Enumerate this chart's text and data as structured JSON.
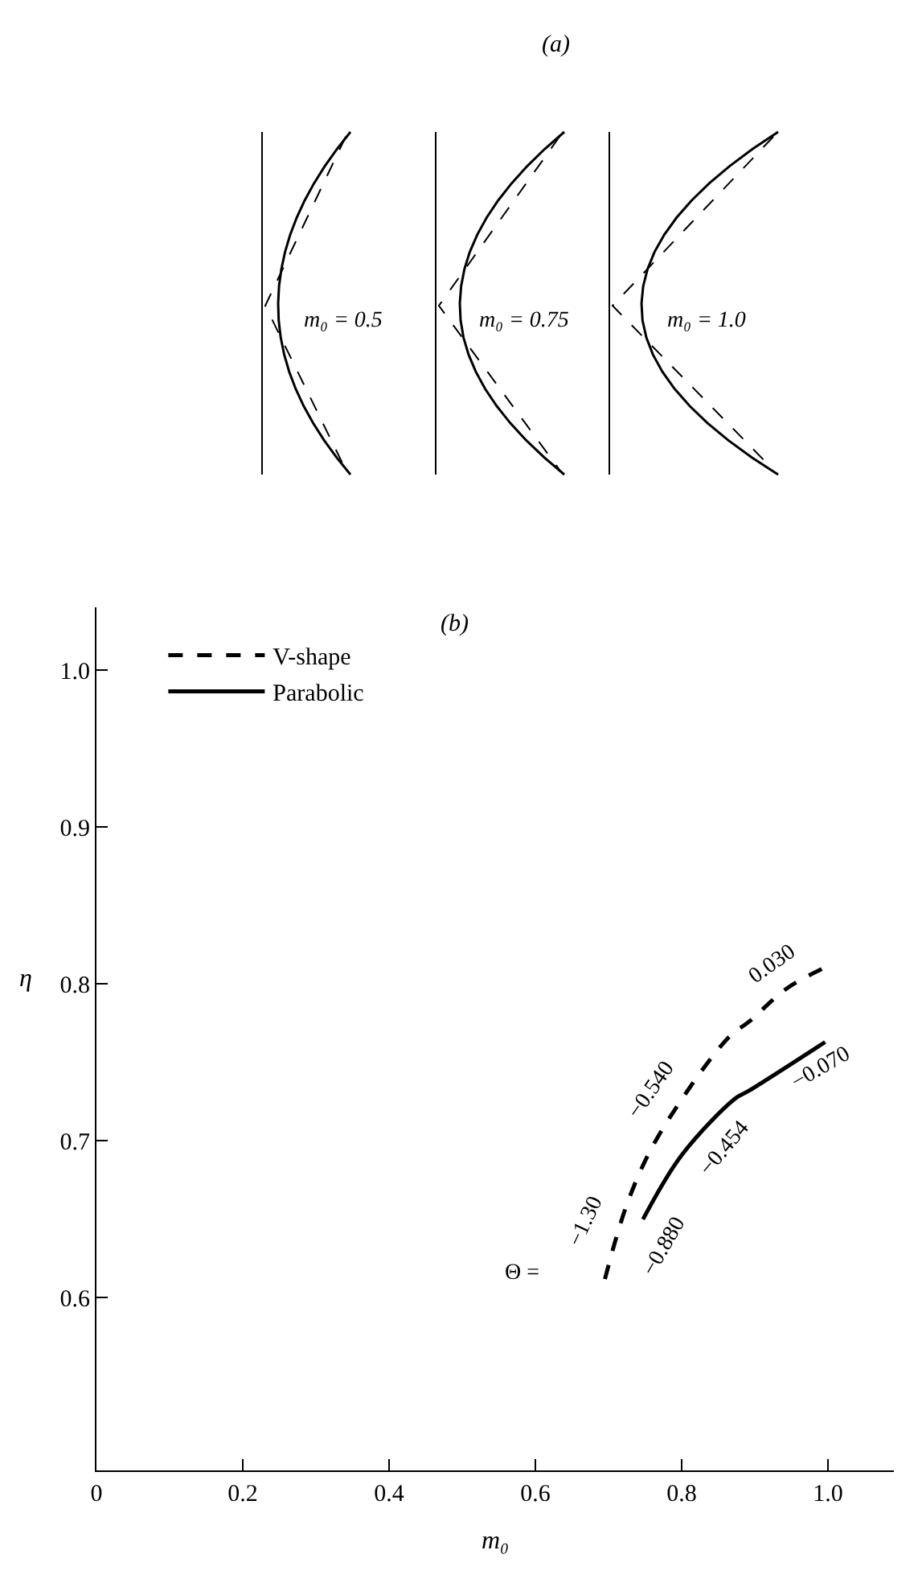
{
  "chart_data": [
    {
      "type": "other",
      "title": "(a)",
      "annotations": [
        "m₀ = 0.5",
        "m₀ = 0.75",
        "m₀ = 1.0"
      ]
    },
    {
      "type": "line",
      "title": "(b)",
      "xlabel": "m₀",
      "ylabel": "η",
      "xlim": [
        0,
        1.09
      ],
      "ylim": [
        0.49,
        1.04
      ],
      "xticks": [
        0,
        0.2,
        0.4,
        0.6,
        0.8,
        {
          "value": 1.0,
          "label": "1.0"
        }
      ],
      "yticks": [
        0.6,
        0.7,
        0.8,
        0.9,
        {
          "value": 1.0,
          "label": "1.0"
        }
      ],
      "legend": "top left",
      "marker": "none",
      "series": [
        {
          "name": "V-shape",
          "color": "#000000",
          "line_style": "dashed",
          "x": [
            0.695,
            0.727,
            0.768,
            0.864,
            0.892,
            0.943,
            0.998
          ],
          "values": [
            0.612,
            0.662,
            0.703,
            0.766,
            0.776,
            0.797,
            0.811
          ]
        },
        {
          "name": "Parabolic",
          "color": "#000000",
          "line_style": "solid",
          "x": [
            0.747,
            0.8,
            0.873,
            0.892,
            0.996
          ],
          "values": [
            0.65,
            0.691,
            0.727,
            0.732,
            0.763
          ]
        }
      ],
      "annotations": [
        "−1.30",
        "−0.540",
        "0.030",
        "−0.880",
        "−0.454",
        "−0.070",
        "Θ ="
      ]
    }
  ]
}
